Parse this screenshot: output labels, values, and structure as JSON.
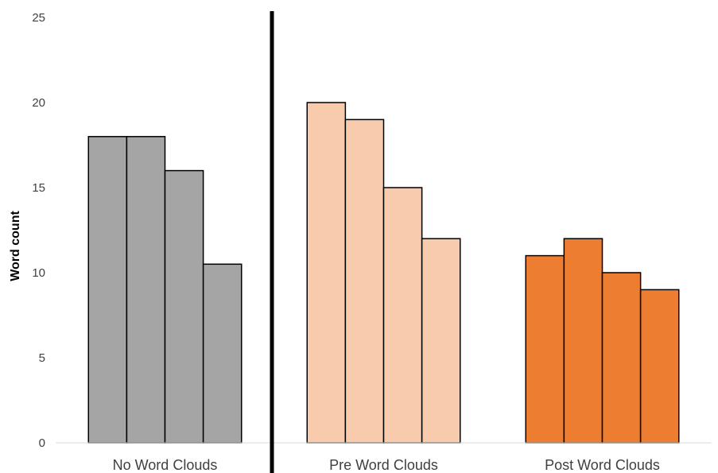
{
  "chart_data": {
    "type": "bar",
    "title": "",
    "xlabel": "",
    "ylabel": "Word count",
    "ylim": [
      0,
      25
    ],
    "yticks": [
      0,
      5,
      10,
      15,
      20,
      25
    ],
    "grid": false,
    "legend": "none",
    "divider_after_group": 0,
    "groups": [
      {
        "label": "No Word Clouds",
        "color": "#A5A5A5",
        "values": [
          18,
          18,
          16,
          10.5
        ]
      },
      {
        "label": "Pre Word Clouds",
        "color": "#F8CBAD",
        "values": [
          20,
          19,
          15,
          12
        ]
      },
      {
        "label": "Post Word Clouds",
        "color": "#ED7D31",
        "values": [
          11,
          12,
          10,
          9
        ]
      }
    ]
  }
}
